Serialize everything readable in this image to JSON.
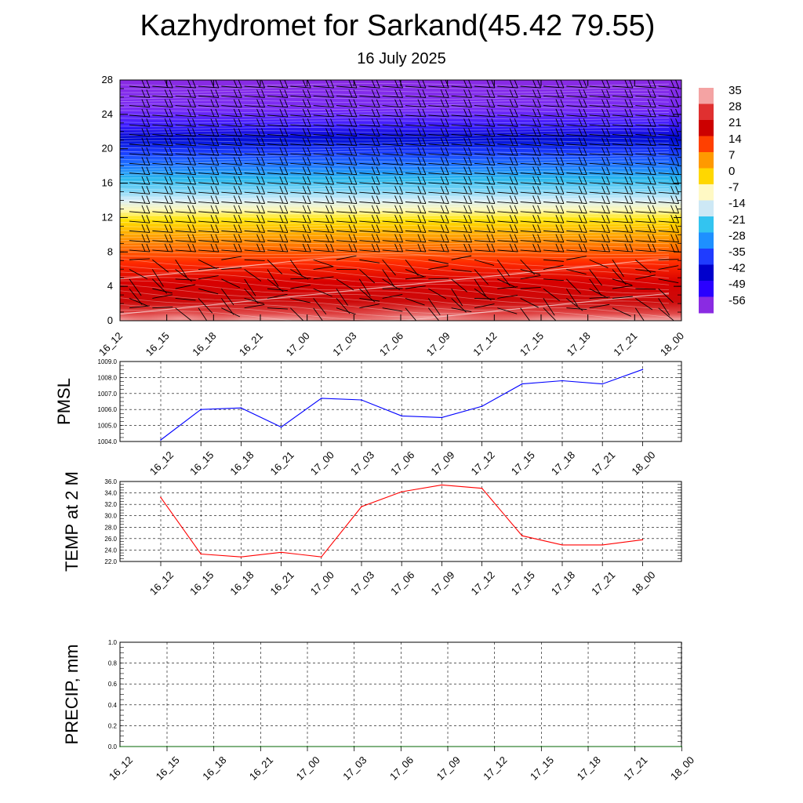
{
  "header": {
    "title": "Kazhydromet for Sarkand(45.42 79.55)",
    "subtitle": "16 July 2025"
  },
  "time_labels": [
    "16_12",
    "16_15",
    "16_18",
    "16_21",
    "17_00",
    "17_03",
    "17_06",
    "17_09",
    "17_12",
    "17_15",
    "17_18",
    "17_21",
    "18_00"
  ],
  "colors": {
    "pmsl_line": "#0000ff",
    "temp_line": "#ff0000",
    "precip_line": "#006400",
    "grid": "#000000"
  },
  "chart_data": [
    {
      "type": "heatmap",
      "x_categories": [
        "16_12",
        "16_15",
        "16_18",
        "16_21",
        "17_00",
        "17_03",
        "17_06",
        "17_09",
        "17_12",
        "17_15",
        "17_18",
        "17_21",
        "18_00"
      ],
      "y_ticks": [
        0,
        4,
        8,
        12,
        16,
        20,
        24,
        28
      ],
      "ylim": [
        0,
        28
      ],
      "colorbar": {
        "labels": [
          "35",
          "28",
          "21",
          "14",
          "7",
          "0",
          "-7",
          "-14",
          "-21",
          "-28",
          "-35",
          "-42",
          "-49",
          "-56"
        ],
        "colors": [
          "#f4a3a3",
          "#e03030",
          "#cc0000",
          "#ff4000",
          "#ff9900",
          "#ffd700",
          "#fff9c4",
          "#cde8f5",
          "#33c4f0",
          "#1e90ff",
          "#1f3cff",
          "#0000cc",
          "#2a00ff",
          "#8a2be2"
        ]
      },
      "levels": [
        {
          "y": 0,
          "temp": 33
        },
        {
          "y": 4,
          "temp": 27
        },
        {
          "y": 8,
          "temp": 12
        },
        {
          "y": 12,
          "temp": -5
        },
        {
          "y": 16,
          "temp": -24
        },
        {
          "y": 20,
          "temp": -48
        },
        {
          "y": 24,
          "temp": -58
        },
        {
          "y": 28,
          "temp": -58
        }
      ],
      "overlay": "wind barbs"
    },
    {
      "type": "line",
      "ylabel": "PMSL",
      "x": [
        "16_12",
        "16_15",
        "16_18",
        "16_21",
        "17_00",
        "17_03",
        "17_06",
        "17_09",
        "17_12",
        "17_15",
        "17_18",
        "17_21",
        "18_00"
      ],
      "y_ticks": [
        "1009.0",
        "1008.0",
        "1007.0",
        "1006.0",
        "1005.0",
        "1004.0"
      ],
      "ylim": [
        1004.0,
        1009.0
      ],
      "series": [
        {
          "values": [
            1004.1,
            1006.0,
            1006.1,
            1004.9,
            1006.7,
            1006.6,
            1005.6,
            1005.5,
            1006.2,
            1007.6,
            1007.8,
            1007.6,
            1008.5
          ]
        }
      ]
    },
    {
      "type": "line",
      "ylabel": "TEMP at 2 M",
      "x": [
        "16_12",
        "16_15",
        "16_18",
        "16_21",
        "17_00",
        "17_03",
        "17_06",
        "17_09",
        "17_12",
        "17_15",
        "17_18",
        "17_21",
        "18_00"
      ],
      "y_ticks": [
        "36.0",
        "34.0",
        "32.0",
        "30.0",
        "28.0",
        "26.0",
        "24.0",
        "22.0"
      ],
      "ylim": [
        22.0,
        36.0
      ],
      "series": [
        {
          "values": [
            33.2,
            23.3,
            22.8,
            23.6,
            22.8,
            31.6,
            34.2,
            35.4,
            34.8,
            26.5,
            24.9,
            24.9,
            25.8
          ]
        }
      ]
    },
    {
      "type": "line",
      "ylabel": "PRECIP, mm",
      "x": [
        "16_12",
        "16_15",
        "16_18",
        "16_21",
        "17_00",
        "17_03",
        "17_06",
        "17_09",
        "17_12",
        "17_15",
        "17_18",
        "17_21",
        "18_00"
      ],
      "y_ticks": [
        "1.0",
        "0.8",
        "0.6",
        "0.4",
        "0.2",
        "0.0"
      ],
      "ylim": [
        0.0,
        1.0
      ],
      "series": [
        {
          "values": [
            0,
            0,
            0,
            0,
            0,
            0,
            0,
            0,
            0,
            0,
            0,
            0,
            0
          ]
        }
      ]
    }
  ]
}
